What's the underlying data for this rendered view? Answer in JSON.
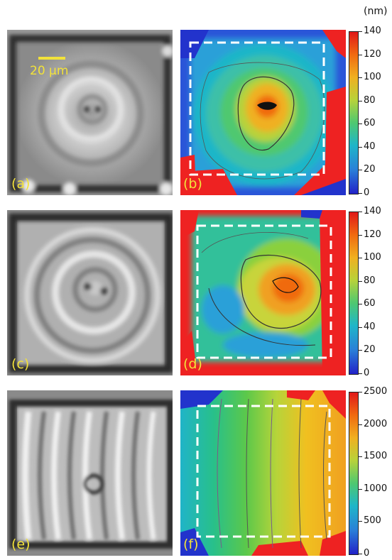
{
  "figure": {
    "unit_label": "(nm)",
    "scale_bar_label": "20 µm",
    "panel_labels": [
      "(a)",
      "(b)",
      "(c)",
      "(d)",
      "(e)",
      "(f)"
    ],
    "colorbar_1_ticks": [
      "140",
      "120",
      "100",
      "80",
      "60",
      "40",
      "20",
      "0"
    ],
    "colorbar_2_ticks": [
      "140",
      "120",
      "100",
      "80",
      "60",
      "40",
      "20",
      "0"
    ],
    "colorbar_3_ticks": [
      "2500",
      "2000",
      "1500",
      "1000",
      "500",
      "0"
    ],
    "colors": {
      "label_yellow": "#f2e23a",
      "dashed_box": "#ffffff",
      "map_red": "#ee2222",
      "map_blue": "#2233cc"
    }
  }
}
